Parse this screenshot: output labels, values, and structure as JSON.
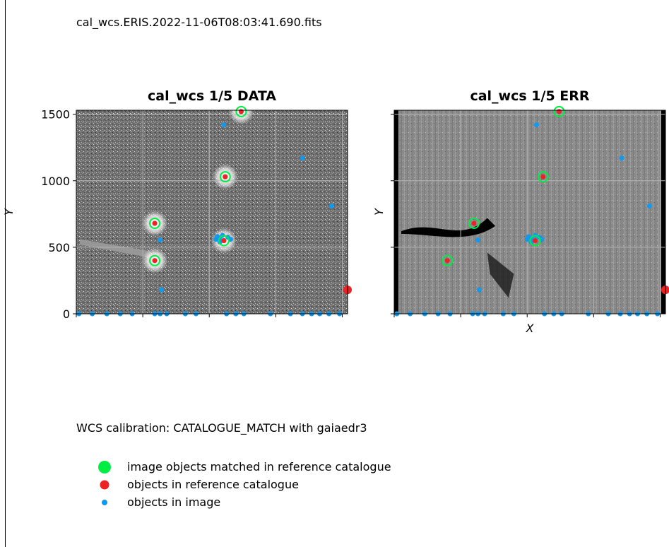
{
  "header": {
    "filename": "cal_wcs.ERIS.2022-11-06T08:03:41.690.fits"
  },
  "footer": {
    "calibration_text": "WCS calibration: CATALOGUE_MATCH with gaiaedr3"
  },
  "colors": {
    "matched": "#00ee44",
    "reference": "#ee2222",
    "image": "#1199ee"
  },
  "legend": [
    {
      "label": "image objects matched in reference catalogue",
      "color": "#00ee44",
      "icon": "green-dot"
    },
    {
      "label": "objects in reference catalogue",
      "color": "#ee2222",
      "icon": "red-dot"
    },
    {
      "label": "objects in image",
      "color": "#1199ee",
      "icon": "blue-dot"
    }
  ],
  "chart_data": [
    {
      "type": "scatter",
      "title": "cal_wcs 1/5 DATA",
      "xlabel": "",
      "ylabel": "Y",
      "ylim": [
        0,
        1530
      ],
      "xlim": [
        0,
        2040
      ],
      "yticks": [
        0,
        500,
        1000,
        1500
      ],
      "show_ytick_labels": true,
      "grid": true,
      "background": "grayscale-image",
      "matched": [
        [
          590,
          400
        ],
        [
          590,
          680
        ],
        [
          1120,
          1030
        ],
        [
          1240,
          1520
        ],
        [
          1110,
          550
        ]
      ],
      "reference": [
        [
          2040,
          180
        ]
      ],
      "image": [
        [
          590,
          400
        ],
        [
          590,
          680
        ],
        [
          1120,
          1030
        ],
        [
          1240,
          1520
        ],
        [
          1110,
          550
        ],
        [
          1060,
          580
        ],
        [
          1080,
          570
        ],
        [
          1100,
          590
        ],
        [
          1140,
          575
        ],
        [
          1160,
          560
        ],
        [
          1080,
          540
        ],
        [
          1050,
          560
        ],
        [
          1110,
          1420
        ],
        [
          1700,
          1170
        ],
        [
          1920,
          810
        ],
        [
          630,
          555
        ],
        [
          640,
          180
        ],
        [
          20,
          0
        ],
        [
          120,
          0
        ],
        [
          230,
          0
        ],
        [
          330,
          0
        ],
        [
          420,
          0
        ],
        [
          590,
          0
        ],
        [
          630,
          0
        ],
        [
          680,
          0
        ],
        [
          820,
          0
        ],
        [
          900,
          0
        ],
        [
          1130,
          0
        ],
        [
          1200,
          0
        ],
        [
          1260,
          0
        ],
        [
          1460,
          0
        ],
        [
          1610,
          0
        ],
        [
          1700,
          0
        ],
        [
          1770,
          0
        ],
        [
          1830,
          0
        ],
        [
          1900,
          0
        ],
        [
          1980,
          0
        ]
      ]
    },
    {
      "type": "scatter",
      "title": "cal_wcs 1/5 ERR",
      "xlabel": "X",
      "ylabel": "Y",
      "ylim": [
        0,
        1530
      ],
      "xlim": [
        0,
        2040
      ],
      "yticks": [
        0,
        500,
        1000,
        1500
      ],
      "show_ytick_labels": false,
      "grid": true,
      "background": "grayscale-image",
      "matched": [
        [
          400,
          400
        ],
        [
          600,
          680
        ],
        [
          1120,
          1030
        ],
        [
          1240,
          1520
        ],
        [
          1060,
          550
        ]
      ],
      "reference": [
        [
          2040,
          180
        ]
      ],
      "image": [
        [
          400,
          400
        ],
        [
          600,
          680
        ],
        [
          1120,
          1030
        ],
        [
          1240,
          1520
        ],
        [
          1060,
          550
        ],
        [
          1010,
          580
        ],
        [
          1030,
          570
        ],
        [
          1060,
          590
        ],
        [
          1090,
          575
        ],
        [
          1110,
          560
        ],
        [
          1030,
          540
        ],
        [
          1000,
          560
        ],
        [
          1070,
          1420
        ],
        [
          1710,
          1170
        ],
        [
          1920,
          810
        ],
        [
          630,
          555
        ],
        [
          640,
          180
        ],
        [
          20,
          0
        ],
        [
          120,
          0
        ],
        [
          230,
          0
        ],
        [
          330,
          0
        ],
        [
          420,
          0
        ],
        [
          590,
          0
        ],
        [
          630,
          0
        ],
        [
          680,
          0
        ],
        [
          820,
          0
        ],
        [
          900,
          0
        ],
        [
          1130,
          0
        ],
        [
          1200,
          0
        ],
        [
          1260,
          0
        ],
        [
          1460,
          0
        ],
        [
          1610,
          0
        ],
        [
          1700,
          0
        ],
        [
          1770,
          0
        ],
        [
          1830,
          0
        ],
        [
          1900,
          0
        ],
        [
          1980,
          0
        ]
      ]
    }
  ]
}
